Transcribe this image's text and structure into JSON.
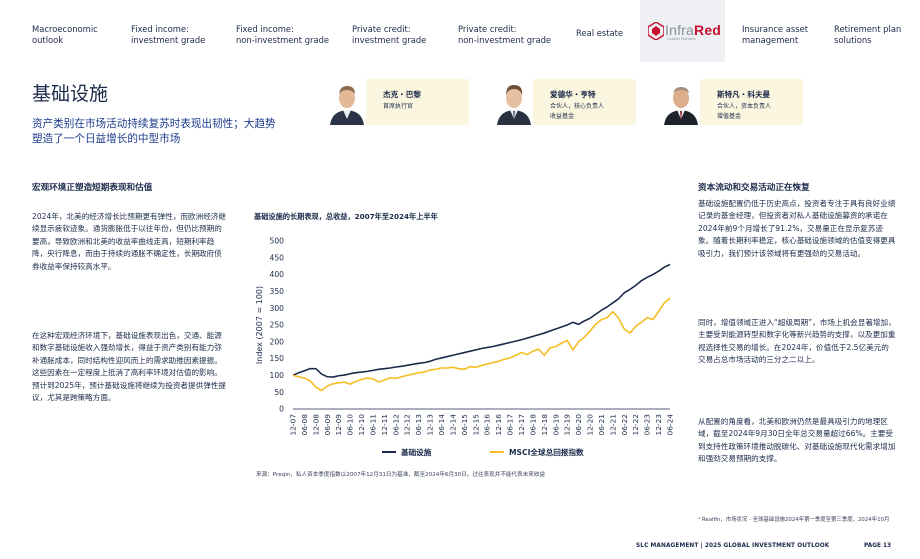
{
  "nav": {
    "items": [
      {
        "label": "Macroeconomic\noutlook"
      },
      {
        "label": "Fixed income:\ninvestment grade"
      },
      {
        "label": "Fixed income:\nnon-investment grade"
      },
      {
        "label": "Private credit:\ninvestment grade"
      },
      {
        "label": "Private credit:\nnon-investment grade"
      },
      {
        "label": "Real estate"
      },
      {
        "label": "Insurance asset\nmanagement"
      },
      {
        "label": "Retirement plan\nsolutions"
      }
    ],
    "logo": {
      "prefix": "Infra",
      "accent": "Red",
      "sub": "Capital Partners"
    }
  },
  "page": {
    "title": "基础设施",
    "subtitle": "资产类别在市场活动持续复苏时表现出韧性；大趋势塑造了一个日益增长的中型市场"
  },
  "people": [
    {
      "name": "杰克・巴黎",
      "role": "首席执行官"
    },
    {
      "name": "爱德华・亨特",
      "role": "合伙人，核心负责人\n收益基金"
    },
    {
      "name": "斯特凡・科夫曼",
      "role": "合伙人，资本负责人\n增值基金"
    }
  ],
  "left": {
    "heading": "宏观环境正塑造短期表现和估值",
    "p1": "2024年，北美的经济增长比预期更有弹性，而欧洲经济继续显示疲软迹象。通货膨胀低于以往年份，但仍比预期的要高，导致欧洲和北美的收益率曲线走高，短期利率趋降，央行降息，而由于持续的通胀不确定性，长期政府债券收益率保持较高水平。",
    "p2": "在这种宏观经济环境下，基础设施表现出色，交通、能源和数字基础设施收入强劲增长，得益于资产类别有能力弥补通胀成本，同时结构性迎风而上的需求助推因素提振。这些因素在一定程度上抵消了高利率环境对估值的影响。预计到2025年，预计基础设施将继续为投资者提供弹性提议，尤其是跨策略方面。"
  },
  "chart": {
    "title": "基础设施的长期表现，总收益，2007年至2024年上半年",
    "source": "来源：Preqin，私人资本季度指数以2007年12月31日为基准，截至2024年6月30日。过往表现并不能代表未来收益"
  },
  "right": {
    "heading": "资本流动和交易活动正在恢复",
    "p1": "基础设施配置仍低于历史高点，投资者专注于具有良好业绩记录的基金经理，但投资者对私人基础设施募资的承诺在2024年前9个月增长了91.2%，交易量正在显示复苏迹象。随着长期利率稳定，核心基础设施领域的估值变得更具吸引力，我们预计该领域将有更强劲的交易活动。",
    "p2": "同时，增值领域正进入“超级周期”，市场上机会显著增加，主要受到能源转型和数字化等新兴趋势的支撑，以及更加重视选择性交易的增长。在2024年，价值低于2.5亿美元的交易占总市场活动的三分之二以上。",
    "p3": "从配置的角度看，北美和欧洲仍然是最具吸引力的地理区域，截至2024年9月30日全年总交易量超过66%。主要受到支持性政策环境推动脱碳化、对基础设施现代化需求增加和强劲交易预期的支撑。"
  },
  "footnote": "¹ Realfin，市场状况 - 全球基础设施2024年第一季度至第三季度，2024年10月",
  "footer": {
    "text": "SLC MANAGEMENT | 2025 GLOBAL INVESTMENT OUTLOOK",
    "page": "PAGE 13"
  },
  "colors": {
    "navy": "#1b2a4a",
    "gold": "#f5bd1f",
    "accent_blue": "#1b3a8c",
    "card": "#fbf6df",
    "logo_red": "#c8102e"
  },
  "chart_data": {
    "type": "line",
    "title": "基础设施的长期表现，总收益，2007年至2024年上半年",
    "ylabel": "Index (2007 = 100)",
    "xlabel": "",
    "ylim": [
      0,
      500
    ],
    "yticks": [
      0,
      50,
      100,
      150,
      200,
      250,
      300,
      350,
      400,
      450,
      500
    ],
    "grid": false,
    "legend_position": "bottom",
    "x": [
      "12-07",
      "03-08",
      "06-08",
      "09-08",
      "12-08",
      "03-09",
      "06-09",
      "09-09",
      "12-09",
      "03-10",
      "06-10",
      "09-10",
      "12-10",
      "03-11",
      "06-11",
      "09-11",
      "12-11",
      "03-12",
      "06-12",
      "09-12",
      "12-12",
      "03-13",
      "06-13",
      "09-13",
      "12-13",
      "03-14",
      "06-14",
      "09-14",
      "12-14",
      "03-15",
      "06-15",
      "09-15",
      "12-15",
      "03-16",
      "06-16",
      "09-16",
      "12-16",
      "03-17",
      "06-17",
      "09-17",
      "12-17",
      "03-18",
      "06-18",
      "09-18",
      "12-18",
      "03-19",
      "06-19",
      "09-19",
      "12-19",
      "03-20",
      "06-20",
      "09-20",
      "12-20",
      "03-21",
      "06-21",
      "09-21",
      "12-21",
      "03-22",
      "06-22",
      "09-22",
      "12-22",
      "03-23",
      "06-23",
      "09-23",
      "12-23",
      "03-24",
      "06-24"
    ],
    "x_tick_labels": [
      "12-07",
      "06-08",
      "12-08",
      "06-09",
      "12-09",
      "06-10",
      "12-10",
      "06-11",
      "12-11",
      "06-12",
      "12-12",
      "06-13",
      "12-13",
      "06-14",
      "12-14",
      "06-15",
      "12-15",
      "06-16",
      "12-16",
      "06-17",
      "12-17",
      "06-18",
      "12-18",
      "06-19",
      "12-19",
      "06-20",
      "12-20",
      "06-21",
      "12-21",
      "06-22",
      "12-22",
      "06-23",
      "12-23",
      "06-24"
    ],
    "series": [
      {
        "name": "基础设施",
        "color": "#1b2a4a",
        "values": [
          100,
          108,
          114,
          120,
          120,
          104,
          96,
          95,
          99,
          101,
          105,
          108,
          110,
          112,
          115,
          118,
          120,
          122,
          125,
          127,
          130,
          133,
          136,
          138,
          142,
          148,
          152,
          156,
          160,
          164,
          168,
          172,
          176,
          180,
          183,
          186,
          190,
          194,
          198,
          202,
          206,
          211,
          216,
          221,
          226,
          232,
          238,
          244,
          250,
          258,
          252,
          262,
          270,
          282,
          294,
          304,
          316,
          328,
          346,
          356,
          368,
          382,
          392,
          400,
          410,
          422,
          430
        ]
      },
      {
        "name": "MSCI全球总回报指数",
        "color": "#f5bd1f",
        "values": [
          100,
          96,
          92,
          84,
          65,
          55,
          68,
          75,
          78,
          80,
          74,
          82,
          88,
          92,
          90,
          80,
          86,
          93,
          91,
          96,
          100,
          104,
          108,
          110,
          116,
          118,
          122,
          122,
          124,
          120,
          118,
          126,
          124,
          130,
          134,
          138,
          142,
          148,
          152,
          160,
          168,
          162,
          172,
          178,
          160,
          182,
          186,
          196,
          204,
          176,
          200,
          214,
          232,
          252,
          266,
          272,
          290,
          270,
          238,
          226,
          246,
          258,
          272,
          266,
          290,
          316,
          330
        ]
      }
    ]
  }
}
